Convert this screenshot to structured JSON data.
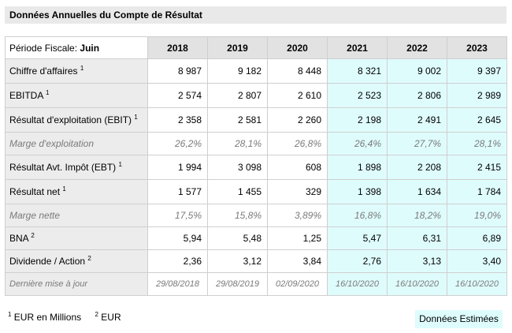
{
  "title": "Données Annuelles du Compte de Résultat",
  "period": {
    "label": "Période Fiscale:",
    "value": "Juin"
  },
  "years": [
    "2018",
    "2019",
    "2020",
    "2021",
    "2022",
    "2023"
  ],
  "estimated_from_index": 3,
  "rows": [
    {
      "label": "Chiffre d'affaires",
      "sup": "1",
      "italic": false,
      "values": [
        "8 987",
        "9 182",
        "8 448",
        "8 321",
        "9 002",
        "9 397"
      ]
    },
    {
      "label": "EBITDA",
      "sup": "1",
      "italic": false,
      "values": [
        "2 574",
        "2 807",
        "2 610",
        "2 523",
        "2 806",
        "2 989"
      ]
    },
    {
      "label": "Résultat d'exploitation (EBIT)",
      "sup": "1",
      "italic": false,
      "values": [
        "2 358",
        "2 581",
        "2 260",
        "2 198",
        "2 491",
        "2 645"
      ]
    },
    {
      "label": "Marge d'exploitation",
      "sup": "",
      "italic": true,
      "values": [
        "26,2%",
        "28,1%",
        "26,8%",
        "26,4%",
        "27,7%",
        "28,1%"
      ]
    },
    {
      "label": "Résultat Avt. Impôt (EBT)",
      "sup": "1",
      "italic": false,
      "values": [
        "1 994",
        "3 098",
        "608",
        "1 898",
        "2 208",
        "2 415"
      ]
    },
    {
      "label": "Résultat net",
      "sup": "1",
      "italic": false,
      "values": [
        "1 577",
        "1 455",
        "329",
        "1 398",
        "1 634",
        "1 784"
      ]
    },
    {
      "label": "Marge nette",
      "sup": "",
      "italic": true,
      "values": [
        "17,5%",
        "15,8%",
        "3,89%",
        "16,8%",
        "18,2%",
        "19,0%"
      ]
    },
    {
      "label": "BNA",
      "sup": "2",
      "italic": false,
      "values": [
        "5,94",
        "5,48",
        "1,25",
        "5,47",
        "6,31",
        "6,89"
      ]
    },
    {
      "label": "Dividende / Action",
      "sup": "2",
      "italic": false,
      "values": [
        "2,36",
        "3,12",
        "3,84",
        "2,76",
        "3,13",
        "3,40"
      ]
    },
    {
      "label": "Dernière mise à jour",
      "sup": "",
      "italic": true,
      "date": true,
      "values": [
        "29/08/2018",
        "29/08/2019",
        "02/09/2020",
        "16/10/2020",
        "16/10/2020",
        "16/10/2020"
      ]
    }
  ],
  "footnotes": [
    {
      "sup": "1",
      "text": "EUR en Millions"
    },
    {
      "sup": "2",
      "text": "EUR"
    }
  ],
  "estimated_label": "Données Estimées"
}
